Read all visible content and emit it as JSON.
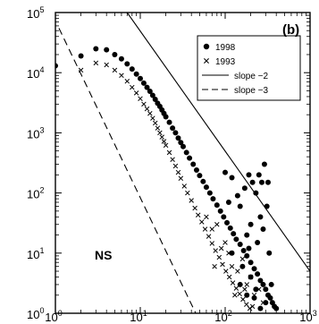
{
  "chart_data": {
    "type": "scatter",
    "panel_label": "(b)",
    "annotation": "NS",
    "x_scale": "log",
    "y_scale": "log",
    "xlim": [
      1,
      1000
    ],
    "ylim": [
      1,
      100000
    ],
    "grid": false,
    "legend_position": "top-right",
    "x_ticks": [
      {
        "value": 1,
        "base": "10",
        "exp": "0"
      },
      {
        "value": 10,
        "base": "10",
        "exp": "1"
      },
      {
        "value": 100,
        "base": "10",
        "exp": "2"
      },
      {
        "value": 1000,
        "base": "10",
        "exp": "3"
      }
    ],
    "y_ticks": [
      {
        "value": 1,
        "base": "10",
        "exp": "0"
      },
      {
        "value": 10,
        "base": "10",
        "exp": "1"
      },
      {
        "value": 100,
        "base": "10",
        "exp": "2"
      },
      {
        "value": 1000,
        "base": "10",
        "exp": "3"
      },
      {
        "value": 10000,
        "base": "10",
        "exp": "4"
      },
      {
        "value": 100000,
        "base": "10",
        "exp": "5"
      }
    ],
    "series": [
      {
        "name": "1998",
        "marker": "circle",
        "points": [
          [
            1,
            13000
          ],
          [
            2,
            19000
          ],
          [
            3,
            25000
          ],
          [
            4,
            24000
          ],
          [
            5,
            20000
          ],
          [
            6,
            17000
          ],
          [
            7,
            14000
          ],
          [
            8,
            11500
          ],
          [
            9,
            9500
          ],
          [
            10,
            8000
          ],
          [
            11,
            6700
          ],
          [
            12,
            5700
          ],
          [
            13,
            4900
          ],
          [
            14,
            4200
          ],
          [
            15,
            3600
          ],
          [
            16,
            3100
          ],
          [
            17,
            2750
          ],
          [
            18,
            2400
          ],
          [
            19,
            2100
          ],
          [
            20,
            1850
          ],
          [
            22,
            1500
          ],
          [
            24,
            1200
          ],
          [
            26,
            1000
          ],
          [
            28,
            820
          ],
          [
            30,
            690
          ],
          [
            32,
            590
          ],
          [
            35,
            470
          ],
          [
            38,
            380
          ],
          [
            42,
            300
          ],
          [
            46,
            240
          ],
          [
            50,
            195
          ],
          [
            55,
            155
          ],
          [
            60,
            125
          ],
          [
            66,
            100
          ],
          [
            72,
            80
          ],
          [
            80,
            63
          ],
          [
            88,
            50
          ],
          [
            96,
            40
          ],
          [
            105,
            32
          ],
          [
            115,
            26
          ],
          [
            125,
            21
          ],
          [
            135,
            17
          ],
          [
            150,
            14
          ],
          [
            165,
            11
          ],
          [
            180,
            9
          ],
          [
            200,
            7
          ],
          [
            220,
            5.5
          ],
          [
            240,
            4.5
          ],
          [
            260,
            3.5
          ],
          [
            280,
            3
          ],
          [
            300,
            2.5
          ],
          [
            320,
            2
          ],
          [
            340,
            1.8
          ],
          [
            360,
            1.5
          ],
          [
            380,
            1.3
          ],
          [
            400,
            1.2
          ],
          [
            150,
            60
          ],
          [
            170,
            120
          ],
          [
            190,
            200
          ],
          [
            210,
            150
          ],
          [
            230,
            100
          ],
          [
            250,
            200
          ],
          [
            270,
            150
          ],
          [
            290,
            300
          ],
          [
            320,
            150
          ],
          [
            100,
            220
          ],
          [
            120,
            180
          ],
          [
            110,
            70
          ],
          [
            140,
            90
          ],
          [
            200,
            30
          ],
          [
            260,
            40
          ],
          [
            310,
            60
          ],
          [
            180,
            20
          ],
          [
            240,
            15
          ],
          [
            330,
            10
          ],
          [
            280,
            25
          ],
          [
            120,
            10
          ],
          [
            160,
            6
          ],
          [
            200,
            4
          ],
          [
            300,
            1.5
          ],
          [
            230,
            2.5
          ],
          [
            350,
            3
          ],
          [
            190,
            12
          ],
          [
            150,
            3
          ],
          [
            220,
            1.8
          ],
          [
            260,
            1.2
          ],
          [
            180,
            2
          ]
        ]
      },
      {
        "name": "1993",
        "marker": "x",
        "points": [
          [
            2,
            11000
          ],
          [
            3,
            14500
          ],
          [
            4,
            13500
          ],
          [
            5,
            11000
          ],
          [
            6,
            9000
          ],
          [
            7,
            7200
          ],
          [
            8,
            5700
          ],
          [
            9,
            4600
          ],
          [
            10,
            3700
          ],
          [
            11,
            3000
          ],
          [
            12,
            2500
          ],
          [
            13,
            2100
          ],
          [
            14,
            1750
          ],
          [
            15,
            1450
          ],
          [
            16,
            1200
          ],
          [
            17,
            1000
          ],
          [
            18,
            850
          ],
          [
            19,
            720
          ],
          [
            20,
            620
          ],
          [
            22,
            470
          ],
          [
            24,
            360
          ],
          [
            26,
            280
          ],
          [
            28,
            220
          ],
          [
            30,
            175
          ],
          [
            33,
            130
          ],
          [
            36,
            100
          ],
          [
            40,
            75
          ],
          [
            44,
            56
          ],
          [
            48,
            43
          ],
          [
            53,
            33
          ],
          [
            58,
            25
          ],
          [
            64,
            19
          ],
          [
            70,
            14.5
          ],
          [
            77,
            11
          ],
          [
            85,
            8.5
          ],
          [
            93,
            6.5
          ],
          [
            102,
            5
          ],
          [
            112,
            4
          ],
          [
            123,
            3.2
          ],
          [
            135,
            2.6
          ],
          [
            148,
            2.1
          ],
          [
            162,
            1.7
          ],
          [
            178,
            1.4
          ],
          [
            195,
            1.2
          ],
          [
            60,
            40
          ],
          [
            70,
            25
          ],
          [
            80,
            30
          ],
          [
            90,
            12
          ],
          [
            100,
            15
          ],
          [
            110,
            10
          ],
          [
            120,
            6
          ],
          [
            140,
            5
          ],
          [
            160,
            8
          ],
          [
            180,
            3
          ],
          [
            200,
            4
          ],
          [
            220,
            2
          ],
          [
            250,
            2.5
          ],
          [
            280,
            1.5
          ],
          [
            75,
            6
          ],
          [
            130,
            2
          ],
          [
            170,
            2.5
          ],
          [
            210,
            1.3
          ]
        ]
      }
    ],
    "lines": [
      {
        "name": "slope -2",
        "style": "solid",
        "x": [
          7,
          1000
        ],
        "y": [
          100000,
          5
        ]
      },
      {
        "name": "slope -3",
        "style": "dashed",
        "x": [
          1.1,
          45
        ],
        "y": [
          55000,
          1
        ]
      }
    ],
    "legend": [
      {
        "label": "1998",
        "marker": "circle"
      },
      {
        "label": "1993",
        "marker": "x"
      },
      {
        "label": "slope −2",
        "marker": "solid"
      },
      {
        "label": "slope −3",
        "marker": "dashed"
      }
    ]
  }
}
